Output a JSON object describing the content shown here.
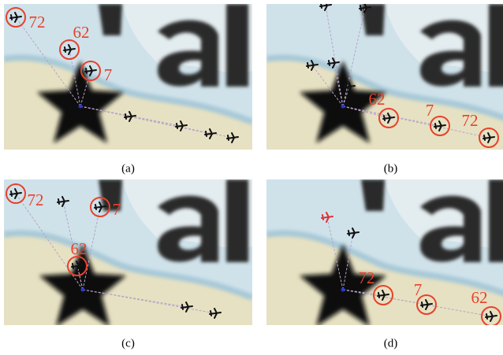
{
  "panels": [
    {
      "caption": "(a)",
      "markers": [
        "72",
        "62",
        "7"
      ]
    },
    {
      "caption": "(b)",
      "markers": [
        "62",
        "7",
        "72"
      ]
    },
    {
      "caption": "(c)",
      "markers": [
        "72",
        "7",
        "62"
      ]
    },
    {
      "caption": "(d)",
      "markers": [
        "72",
        "7",
        "62"
      ]
    }
  ]
}
